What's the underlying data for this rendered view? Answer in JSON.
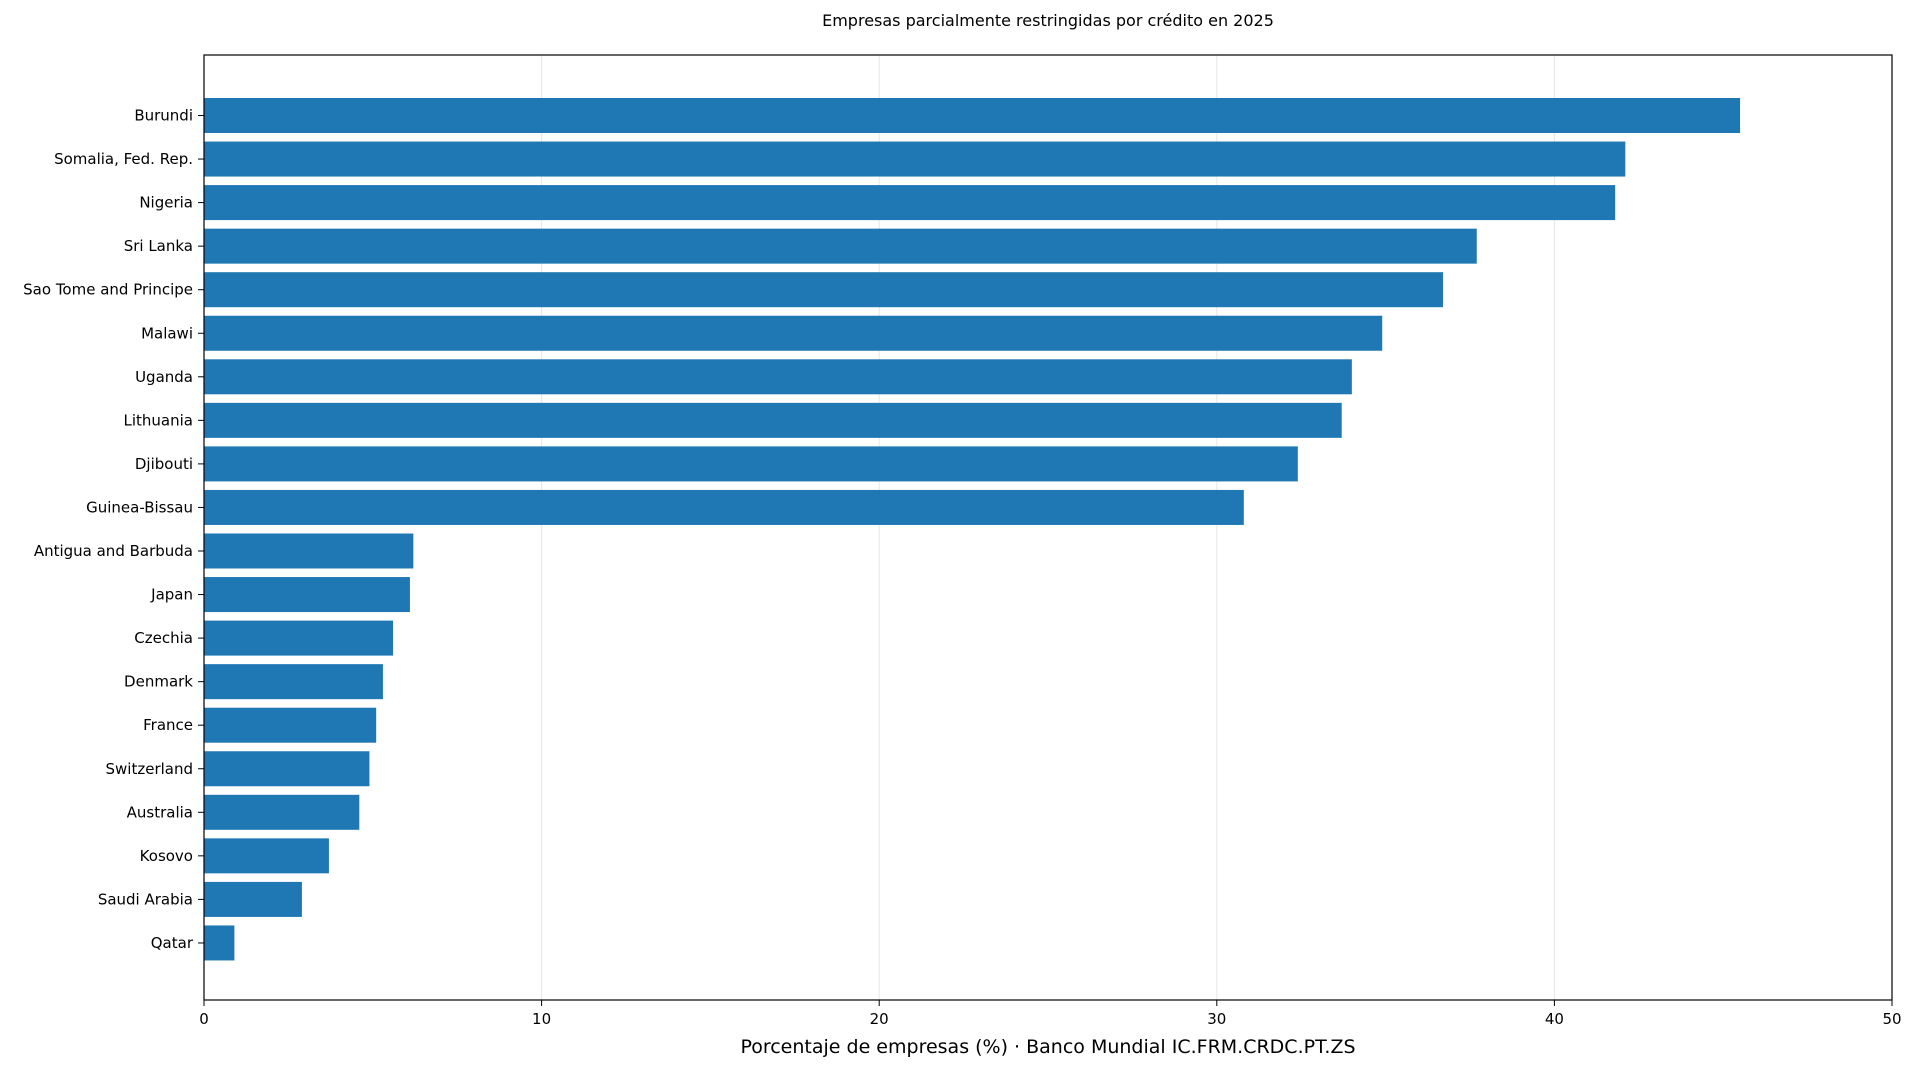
{
  "chart_data": {
    "type": "bar",
    "orientation": "horizontal",
    "title": "Empresas parcialmente restringidas por crédito en 2025",
    "xlabel": "Porcentaje de empresas (%) · Banco Mundial IC.FRM.CRDC.PT.ZS",
    "ylabel": "",
    "xlim": [
      0,
      50
    ],
    "xticks": [
      "0",
      "10",
      "20",
      "30",
      "40",
      "50"
    ],
    "grid": "vertical",
    "categories": [
      "Burundi",
      "Somalia, Fed. Rep.",
      "Nigeria",
      "Sri Lanka",
      "Sao Tome and Principe",
      "Malawi",
      "Uganda",
      "Lithuania",
      "Djibouti",
      "Guinea-Bissau",
      "Antigua and Barbuda",
      "Japan",
      "Czechia",
      "Denmark",
      "France",
      "Switzerland",
      "Australia",
      "Kosovo",
      "Saudi Arabia",
      "Qatar"
    ],
    "values": [
      45.5,
      42.1,
      41.8,
      37.7,
      36.7,
      34.9,
      34.0,
      33.7,
      32.4,
      30.8,
      6.2,
      6.1,
      5.6,
      5.3,
      5.1,
      4.9,
      4.6,
      3.7,
      2.9,
      0.9
    ],
    "bar_color": "#1f77b4"
  }
}
